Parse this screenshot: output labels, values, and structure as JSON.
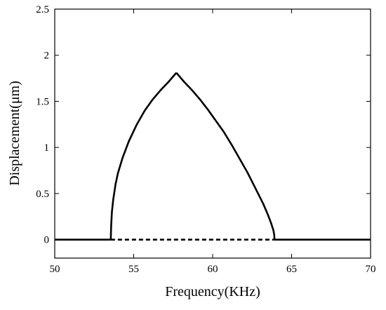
{
  "chart_data": {
    "type": "line",
    "title": "",
    "xlabel": "Frequency(KHz)",
    "ylabel": "Displacement(μm)",
    "xlim": [
      50,
      70
    ],
    "ylim": [
      -0.2,
      2.5
    ],
    "xticks": [
      50,
      55,
      60,
      65,
      70
    ],
    "xtick_labels": [
      "50",
      "55",
      "60",
      "65",
      "70"
    ],
    "yticks": [
      0,
      0.5,
      1,
      1.5,
      2,
      2.5
    ],
    "ytick_labels": [
      "0",
      "0.5",
      "1",
      "1.5",
      "2",
      "2.5"
    ],
    "grid": false,
    "legend": "none",
    "series": [
      {
        "style": "solid",
        "color": "#000000",
        "x": [
          50,
          53.55
        ],
        "y": [
          0,
          0
        ]
      },
      {
        "style": "solid",
        "color": "#000000",
        "x": [
          53.55,
          53.57,
          53.62,
          53.7,
          53.85,
          54.0,
          54.3,
          54.7,
          55.2,
          55.7,
          56.2,
          56.7,
          57.2,
          57.7
        ],
        "y": [
          0,
          0.14,
          0.3,
          0.43,
          0.6,
          0.72,
          0.89,
          1.07,
          1.25,
          1.4,
          1.52,
          1.62,
          1.71,
          1.81
        ]
      },
      {
        "style": "solid",
        "color": "#000000",
        "x": [
          57.7,
          58.2,
          58.7,
          59.2,
          59.7,
          60.2,
          60.7,
          61.2,
          61.7,
          62.2,
          62.7,
          63.2,
          63.5,
          63.7,
          63.85,
          63.9,
          63.92
        ],
        "y": [
          1.81,
          1.71,
          1.62,
          1.52,
          1.41,
          1.29,
          1.17,
          1.03,
          0.88,
          0.73,
          0.56,
          0.39,
          0.27,
          0.18,
          0.1,
          0.05,
          0
        ]
      },
      {
        "style": "solid",
        "color": "#000000",
        "x": [
          63.92,
          70
        ],
        "y": [
          0,
          0
        ]
      },
      {
        "style": "dashed",
        "color": "#000000",
        "x": [
          53.55,
          63.92
        ],
        "y": [
          0,
          0
        ]
      }
    ]
  }
}
